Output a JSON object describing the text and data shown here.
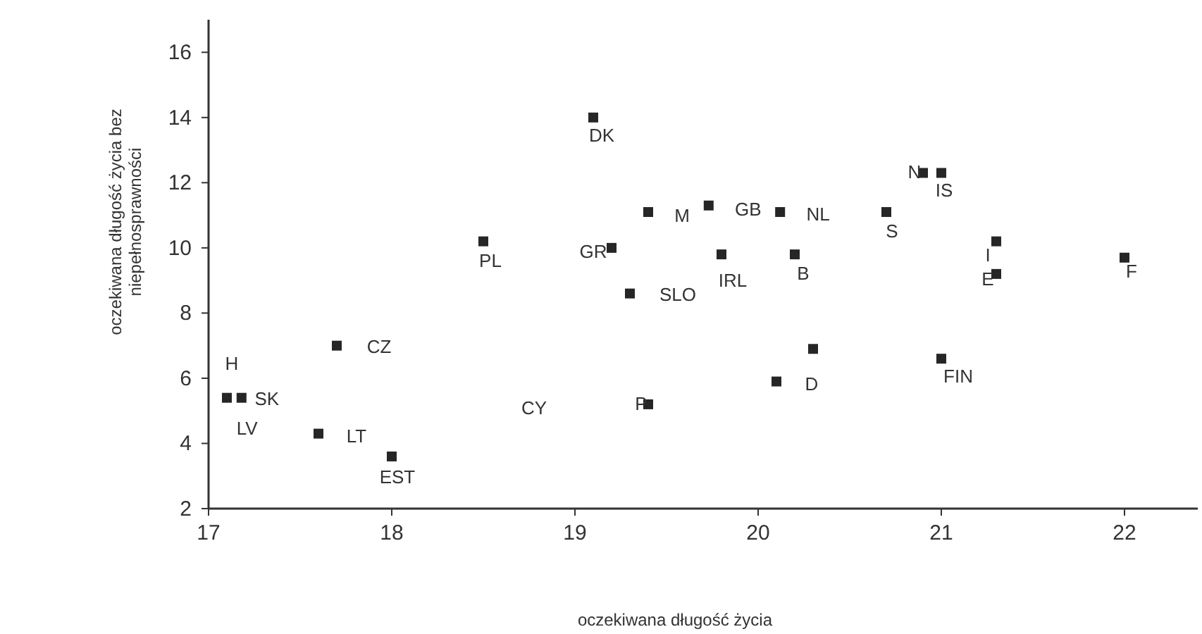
{
  "chart_data": {
    "type": "scatter",
    "xlabel": "oczekiwana długość życia",
    "ylabel": "oczekiwana długość życia bez niepełnosprawności",
    "xlim": [
      17,
      22.4
    ],
    "ylim": [
      2,
      17
    ],
    "xticks": [
      17,
      18,
      19,
      20,
      21,
      22
    ],
    "yticks": [
      2,
      4,
      6,
      8,
      10,
      12,
      14,
      16
    ],
    "grid": false,
    "marker": "square",
    "series": [
      {
        "color": "#262626",
        "x": [
          17.1,
          17.18,
          17.6,
          18.0,
          17.7,
          18.5,
          19.1,
          19.2,
          19.3,
          19.4,
          19.4,
          19.73,
          20.12,
          19.8,
          20.2,
          20.1,
          20.3,
          20.7,
          20.9,
          21.0,
          21.3,
          21.3,
          22.0,
          21.0
        ],
        "values": [
          5.4,
          5.4,
          4.3,
          3.6,
          7.0,
          10.2,
          14.0,
          10.0,
          8.6,
          5.2,
          11.1,
          11.3,
          11.1,
          9.8,
          9.8,
          5.9,
          6.9,
          11.1,
          12.3,
          12.3,
          10.2,
          9.2,
          9.7,
          6.6
        ]
      }
    ],
    "annotations": [
      {
        "text": "H",
        "x": 17.18,
        "y": 5.4
      },
      {
        "text": "SK",
        "x": 17.18,
        "y": 5.4
      },
      {
        "text": "LV",
        "x": 17.18,
        "y": 5.4
      },
      {
        "text": "LT",
        "x": 17.6,
        "y": 4.3
      },
      {
        "text": "EST",
        "x": 18.0,
        "y": 3.6
      },
      {
        "text": "CZ",
        "x": 17.7,
        "y": 7.0
      },
      {
        "text": "PL",
        "x": 18.5,
        "y": 10.2
      },
      {
        "text": "DK",
        "x": 19.1,
        "y": 14.0
      },
      {
        "text": "GR",
        "x": 19.2,
        "y": 10.0
      },
      {
        "text": "SLO",
        "x": 19.3,
        "y": 8.6
      },
      "CY",
      {
        "text": "P",
        "x": 19.4,
        "y": 5.2
      },
      {
        "text": "M",
        "x": 19.4,
        "y": 11.1
      },
      {
        "text": "IRL",
        "x": 19.8,
        "y": 9.8
      },
      {
        "text": "GB",
        "x": 19.73,
        "y": 11.3
      },
      {
        "text": "NL",
        "x": 20.12,
        "y": 11.1
      },
      {
        "text": "B",
        "x": 20.2,
        "y": 9.8
      },
      {
        "text": "D",
        "x": 20.1,
        "y": 5.9
      },
      {
        "text": "S",
        "x": 20.7,
        "y": 11.1
      },
      {
        "text": "N",
        "x": 20.9,
        "y": 12.3
      },
      {
        "text": "IS",
        "x": 21.0,
        "y": 12.3
      },
      {
        "text": "I",
        "x": 21.3,
        "y": 10.2
      },
      {
        "text": "E",
        "x": 21.3,
        "y": 9.2
      },
      {
        "text": "F",
        "x": 22.0,
        "y": 9.7
      },
      {
        "text": "FIN",
        "x": 21.0,
        "y": 6.6
      }
    ]
  }
}
